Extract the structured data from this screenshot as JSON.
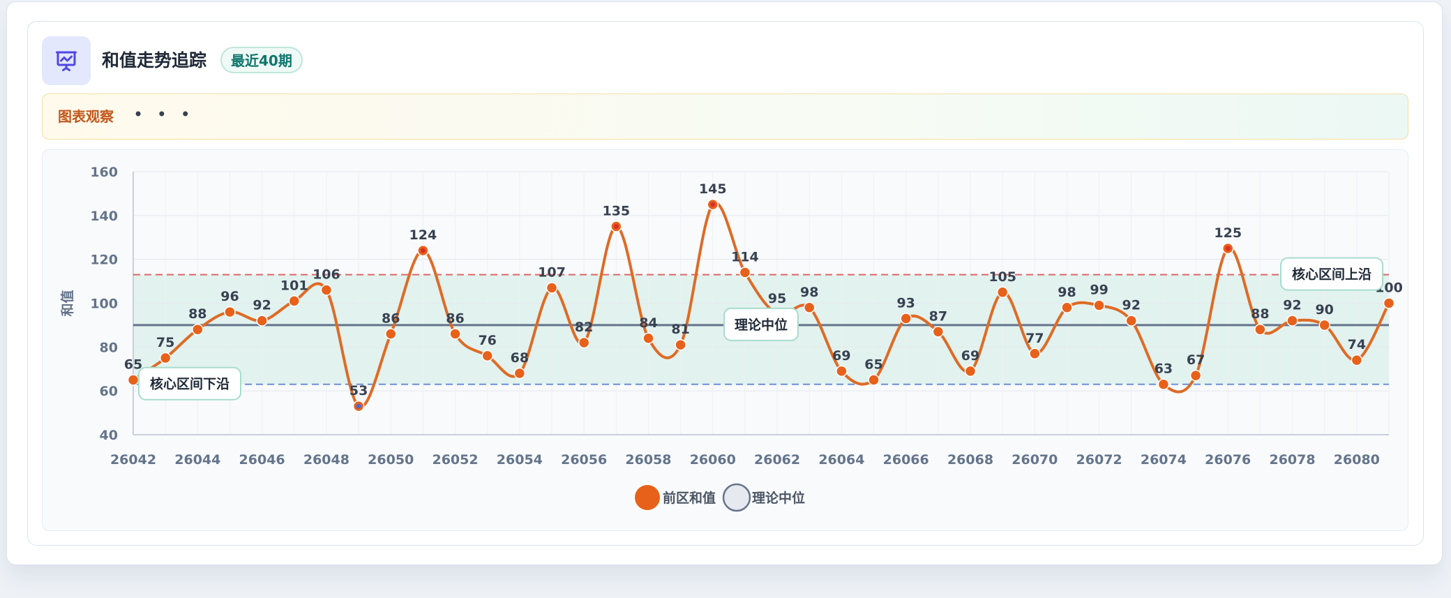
{
  "header": {
    "title": "和值走势追踪",
    "badge": "最近40期",
    "icon": "presentation-chart-icon"
  },
  "observation": {
    "label": "图表观察",
    "dots": "• • •"
  },
  "colors": {
    "series": "#e8611a",
    "line": "#de6b26",
    "median": "#64748b",
    "upper": "#e06666",
    "lower": "#6b8fd6",
    "band": "#d3ede5",
    "low_point": "#4a6bd6"
  },
  "chart_data": {
    "type": "line",
    "ylabel": "和值",
    "xlabel": "",
    "ylim": [
      40,
      160
    ],
    "y_ticks": [
      40,
      60,
      80,
      100,
      120,
      140,
      160
    ],
    "x_tick_labels": [
      "26042",
      "26044",
      "26046",
      "26048",
      "26050",
      "26052",
      "26054",
      "26056",
      "26058",
      "26060",
      "26062",
      "26064",
      "26066",
      "26068",
      "26070",
      "26072",
      "26074",
      "26076",
      "26078",
      "26080"
    ],
    "x": [
      26042,
      26043,
      26044,
      26045,
      26046,
      26047,
      26048,
      26049,
      26050,
      26051,
      26052,
      26053,
      26054,
      26055,
      26056,
      26057,
      26058,
      26059,
      26060,
      26061,
      26062,
      26063,
      26064,
      26065,
      26066,
      26067,
      26068,
      26069,
      26070,
      26071,
      26072,
      26073,
      26074,
      26075,
      26076,
      26077,
      26078,
      26079,
      26080,
      26081
    ],
    "series": [
      {
        "name": "前区和值",
        "values": [
          65,
          75,
          88,
          96,
          92,
          101,
          106,
          53,
          86,
          124,
          86,
          76,
          68,
          107,
          82,
          135,
          84,
          81,
          145,
          114,
          95,
          98,
          69,
          65,
          93,
          87,
          69,
          105,
          77,
          98,
          99,
          92,
          63,
          67,
          125,
          88,
          92,
          90,
          74,
          100
        ]
      }
    ],
    "reference_lines": [
      {
        "name": "理论中位",
        "value": 90
      },
      {
        "name": "核心区间上沿",
        "value": 113
      },
      {
        "name": "核心区间下沿",
        "value": 63
      }
    ],
    "legend": [
      "前区和值",
      "理论中位"
    ],
    "legend_position": "bottom-center",
    "grid": true
  }
}
